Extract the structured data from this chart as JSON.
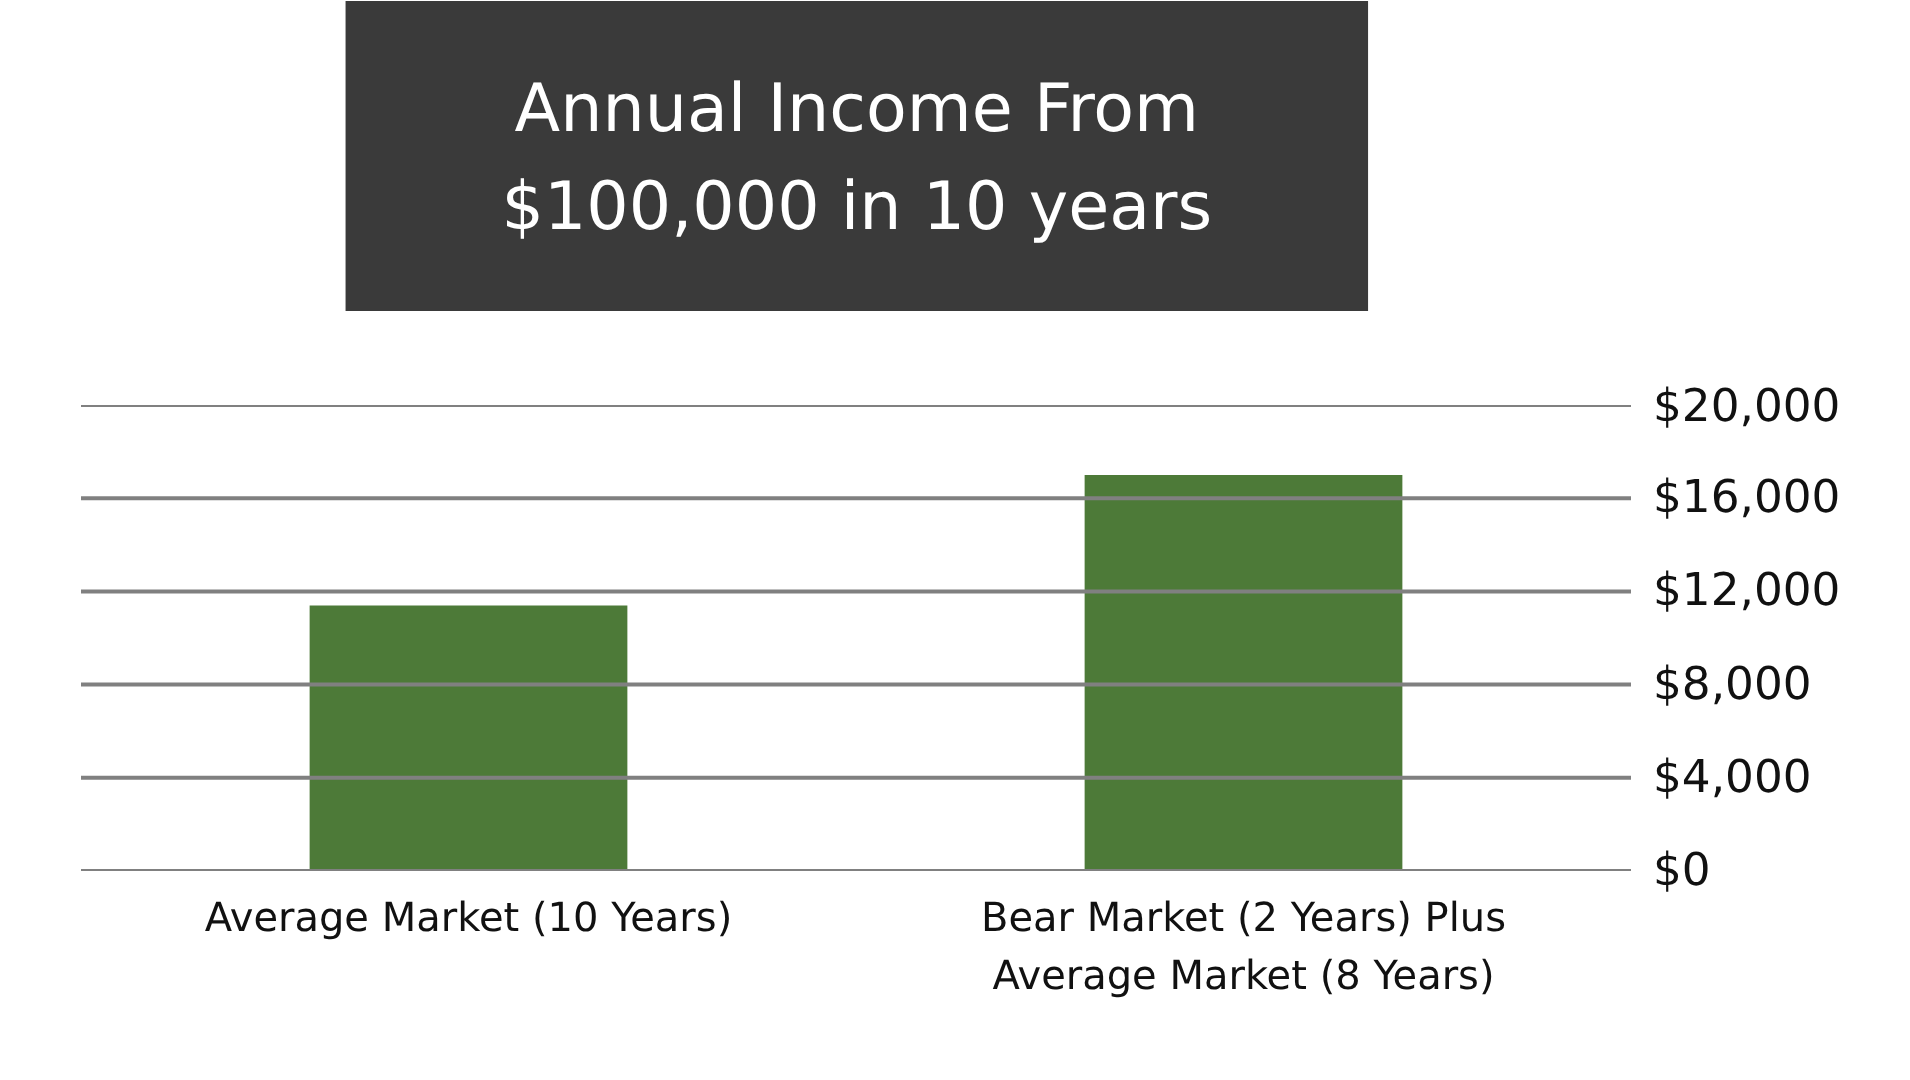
{
  "chart_data": {
    "type": "bar",
    "title": "Annual Income From\n$100,000 in 10 years",
    "categories": [
      "Average Market (10 Years)",
      "Bear Market (2 Years) Plus\nAverage Market (8 Years)"
    ],
    "values": [
      11400,
      17000
    ],
    "color": "#4d7a38",
    "ylim": [
      0,
      20000
    ],
    "yticks": [
      {
        "value": 0,
        "label": "$0"
      },
      {
        "value": 4000,
        "label": "$4,000"
      },
      {
        "value": 8000,
        "label": "$8,000"
      },
      {
        "value": 12000,
        "label": "$12,000"
      },
      {
        "value": 16000,
        "label": "$16,000"
      },
      {
        "value": 20000,
        "label": "$20,000"
      }
    ],
    "grid": "y"
  }
}
